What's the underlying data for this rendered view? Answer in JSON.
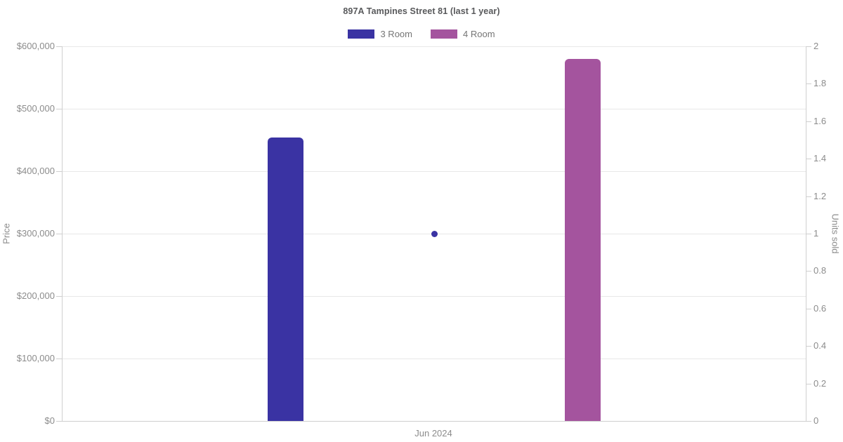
{
  "title": "897A Tampines Street 81 (last 1 year)",
  "legend": [
    {
      "label": "3 Room",
      "color": "#3a33a3"
    },
    {
      "label": "4 Room",
      "color": "#a4549e"
    }
  ],
  "chart_data": {
    "type": "bar",
    "title": "897A Tampines Street 81 (last 1 year)",
    "categories": [
      "Jun 2024"
    ],
    "series": [
      {
        "name": "3 Room",
        "kind": "bar",
        "axis": "price",
        "color": "#3a33a3",
        "values": [
          454000
        ],
        "x_frac": 0.3
      },
      {
        "name": "4 Room",
        "kind": "bar",
        "axis": "price",
        "color": "#a4549e",
        "values": [
          580000
        ],
        "x_frac": 0.7
      },
      {
        "name": "3 Room units sold",
        "kind": "point",
        "axis": "units",
        "color": "#3a33a3",
        "values": [
          1
        ],
        "x_frac": 0.5
      }
    ],
    "price_axis": {
      "label": "Price",
      "min": 0,
      "max": 600000,
      "tick_step": 100000,
      "tick_labels": [
        "$0",
        "$100,000",
        "$200,000",
        "$300,000",
        "$400,000",
        "$500,000",
        "$600,000"
      ]
    },
    "units_axis": {
      "label": "Units sold",
      "min": 0,
      "max": 2,
      "tick_step": 0.2,
      "tick_labels": [
        "0",
        "0.2",
        "0.4",
        "0.6",
        "0.8",
        "1",
        "1.2",
        "1.4",
        "1.6",
        "1.8",
        "2"
      ]
    },
    "x_axis": {
      "tick_labels": [
        "Jun 2024"
      ]
    },
    "grid": "horizontal-only",
    "legend_position": "top-center",
    "colors": {
      "gridline": "#e8e8e8",
      "axis_line": "#cfcfcf",
      "tick_text": "#8c8c8c",
      "title_text": "#58595b"
    }
  }
}
